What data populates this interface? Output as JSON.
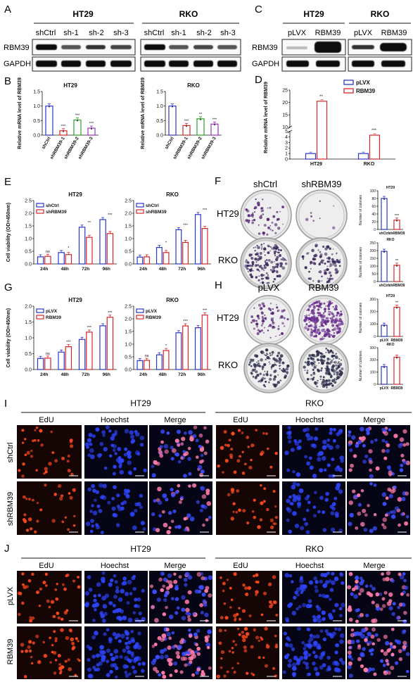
{
  "panels": {
    "A": {
      "letter": "A",
      "groups": [
        "HT29",
        "RKO"
      ],
      "lanes": [
        "shCtrl",
        "sh-1",
        "sh-2",
        "sh-3"
      ],
      "rows": [
        "RBM39",
        "GAPDH"
      ]
    },
    "C": {
      "letter": "C",
      "groups": [
        "HT29",
        "RKO"
      ],
      "lanes": [
        "pLVX",
        "RBM39"
      ],
      "rows": [
        "RBM39",
        "GAPDH"
      ]
    },
    "F": {
      "letter": "F",
      "cols": [
        "shCtrl",
        "shRBM39"
      ],
      "rows": [
        "HT29",
        "RKO"
      ]
    },
    "H": {
      "letter": "H",
      "cols": [
        "pLVX",
        "RBM39"
      ],
      "rows": [
        "HT29",
        "RKO"
      ]
    },
    "I": {
      "letter": "I",
      "groups": [
        "HT29",
        "RKO"
      ],
      "channels": [
        "EdU",
        "Hoechst",
        "Merge"
      ],
      "rows": [
        "shCtrl",
        "shRBM39"
      ]
    },
    "J": {
      "letter": "J",
      "groups": [
        "HT29",
        "RKO"
      ],
      "channels": [
        "EdU",
        "Hoechst",
        "Merge"
      ],
      "rows": [
        "pLVX",
        "RBM39"
      ]
    }
  },
  "chart_data": [
    {
      "id": "B-HT29",
      "panel": "B",
      "type": "bar",
      "title": "HT29",
      "ylabel": "Relative mRNA level of RBM39",
      "ylim": [
        0,
        1.5
      ],
      "yticks": [
        "0.0",
        "0.5",
        "1.0",
        "1.5"
      ],
      "categories": [
        "shCtrl",
        "shRBM39-1",
        "shRBM39-2",
        "shRBM39-3"
      ],
      "values": [
        1.0,
        0.15,
        0.52,
        0.24
      ],
      "colors": [
        "#2a35c9",
        "#d62728",
        "#2ca02c",
        "#9b2fc9"
      ],
      "sig": [
        "",
        "***",
        "***",
        "***"
      ]
    },
    {
      "id": "B-RKO",
      "panel": "B",
      "type": "bar",
      "title": "RKO",
      "ylabel": "Relative mRNA level of RBM39",
      "ylim": [
        0,
        1.5
      ],
      "yticks": [
        "0.0",
        "0.5",
        "1.0",
        "1.5"
      ],
      "categories": [
        "shCtrl",
        "shRBM39-1",
        "shRBM39-2",
        "shRBM39-3"
      ],
      "values": [
        1.0,
        0.33,
        0.56,
        0.38
      ],
      "colors": [
        "#2a35c9",
        "#d62728",
        "#2ca02c",
        "#9b2fc9"
      ],
      "sig": [
        "",
        "***",
        "**",
        "***"
      ]
    },
    {
      "id": "D",
      "panel": "D",
      "type": "bar",
      "title": "",
      "ylabel": "Relative mRNA level of RBM39",
      "yticks": [
        "0",
        "1",
        "2",
        "3",
        "4",
        "5",
        "10",
        "15",
        "20",
        "25"
      ],
      "categories": [
        "HT29",
        "RKO"
      ],
      "series": [
        {
          "name": "pLVX",
          "values": [
            1.0,
            1.0
          ],
          "color": "#2a35c9"
        },
        {
          "name": "RBM39",
          "values": [
            20.5,
            6.8
          ],
          "color": "#d62728"
        }
      ],
      "sig": [
        "**",
        "***"
      ],
      "legend": "top-right"
    },
    {
      "id": "E-HT29",
      "panel": "E",
      "type": "bar",
      "title": "HT29",
      "ylabel": "Cell viability (OD=450nm)",
      "ylim": [
        0,
        2.5
      ],
      "yticks": [
        "0.0",
        "0.5",
        "1.0",
        "1.5",
        "2.0",
        "2.5"
      ],
      "categories": [
        "24h",
        "48h",
        "72h",
        "96h"
      ],
      "series": [
        {
          "name": "shCtrl",
          "values": [
            0.28,
            0.45,
            1.45,
            1.75
          ],
          "color": "#2a35c9"
        },
        {
          "name": "shRBM39",
          "values": [
            0.3,
            0.37,
            1.05,
            1.2
          ],
          "color": "#d62728"
        }
      ],
      "sig": [
        "ns",
        "*",
        "**",
        "***"
      ],
      "legend": "top-left"
    },
    {
      "id": "E-RKO",
      "panel": "E",
      "type": "bar",
      "title": "RKO",
      "ylabel": "",
      "ylim": [
        0,
        2.5
      ],
      "yticks": [
        "0.0",
        "0.5",
        "1.0",
        "1.5",
        "2.0",
        "2.5"
      ],
      "categories": [
        "24h",
        "48h",
        "72h",
        "96h"
      ],
      "series": [
        {
          "name": "shCtrl",
          "values": [
            0.27,
            0.65,
            1.35,
            1.95
          ],
          "color": "#2a35c9"
        },
        {
          "name": "shRBM39",
          "values": [
            0.28,
            0.45,
            0.85,
            1.4
          ],
          "color": "#d62728"
        }
      ],
      "sig": [
        "",
        "*",
        "***",
        "***"
      ],
      "legend": "top-left"
    },
    {
      "id": "F-HT29",
      "panel": "F",
      "type": "bar",
      "title": "HT29",
      "ylabel": "Number of colonies",
      "ylim": [
        0,
        100
      ],
      "yticks": [
        "0",
        "20",
        "40",
        "60",
        "80",
        "100"
      ],
      "categories": [
        "shCtrl",
        "shRBM39"
      ],
      "values": [
        80,
        24
      ],
      "colors": [
        "#2a35c9",
        "#d62728"
      ],
      "sig": [
        "",
        "***"
      ]
    },
    {
      "id": "F-RKO",
      "panel": "F",
      "type": "bar",
      "title": "RKO",
      "ylabel": "Number of colonies",
      "ylim": [
        0,
        250
      ],
      "yticks": [
        "0",
        "50",
        "100",
        "150",
        "200",
        "250"
      ],
      "categories": [
        "shCtrl",
        "shRBM39"
      ],
      "values": [
        195,
        105
      ],
      "colors": [
        "#2a35c9",
        "#d62728"
      ],
      "sig": [
        "",
        "**"
      ]
    },
    {
      "id": "G-HT29",
      "panel": "G",
      "type": "bar",
      "title": "HT29",
      "ylabel": "Cell viability (OD=450nm)",
      "ylim": [
        0,
        2.0
      ],
      "yticks": [
        "0.0",
        "0.5",
        "1.0",
        "1.5",
        "2.0"
      ],
      "categories": [
        "24h",
        "48h",
        "72h",
        "96h"
      ],
      "series": [
        {
          "name": "pLVX",
          "values": [
            0.35,
            0.55,
            0.95,
            1.38
          ],
          "color": "#2a35c9"
        },
        {
          "name": "RBM39",
          "values": [
            0.36,
            0.72,
            1.18,
            1.65
          ],
          "color": "#d62728"
        }
      ],
      "sig": [
        "ns",
        "***",
        "***",
        "***"
      ],
      "legend": "top-left"
    },
    {
      "id": "G-RKO",
      "panel": "G",
      "type": "bar",
      "title": "RKO",
      "ylabel": "",
      "ylim": [
        0,
        2.5
      ],
      "yticks": [
        "0.0",
        "0.5",
        "1.0",
        "1.5",
        "2.0",
        "2.5"
      ],
      "categories": [
        "24h",
        "48h",
        "72h",
        "96h"
      ],
      "series": [
        {
          "name": "pLVX",
          "values": [
            0.35,
            0.58,
            1.45,
            1.65
          ],
          "color": "#2a35c9"
        },
        {
          "name": "RBM39",
          "values": [
            0.36,
            0.75,
            1.72,
            2.15
          ],
          "color": "#d62728"
        }
      ],
      "sig": [
        "ns",
        "*",
        "***",
        "***"
      ],
      "legend": "top-left"
    },
    {
      "id": "H-HT29",
      "panel": "H",
      "type": "bar",
      "title": "HT29",
      "ylabel": "Number of colonies",
      "ylim": [
        0,
        300
      ],
      "yticks": [
        "0",
        "100",
        "200",
        "300"
      ],
      "categories": [
        "pLVX",
        "RBM39"
      ],
      "values": [
        90,
        235
      ],
      "colors": [
        "#2a35c9",
        "#d62728"
      ],
      "sig": [
        "",
        "**"
      ]
    },
    {
      "id": "H-RKO",
      "panel": "H",
      "type": "bar",
      "title": "RKO",
      "ylabel": "Number of colonies",
      "ylim": [
        0,
        300
      ],
      "yticks": [
        "0",
        "100",
        "200",
        "300"
      ],
      "categories": [
        "pLVX",
        "RBM39"
      ],
      "values": [
        145,
        222
      ],
      "colors": [
        "#2a35c9",
        "#d62728"
      ],
      "sig": [
        "",
        ""
      ]
    }
  ]
}
